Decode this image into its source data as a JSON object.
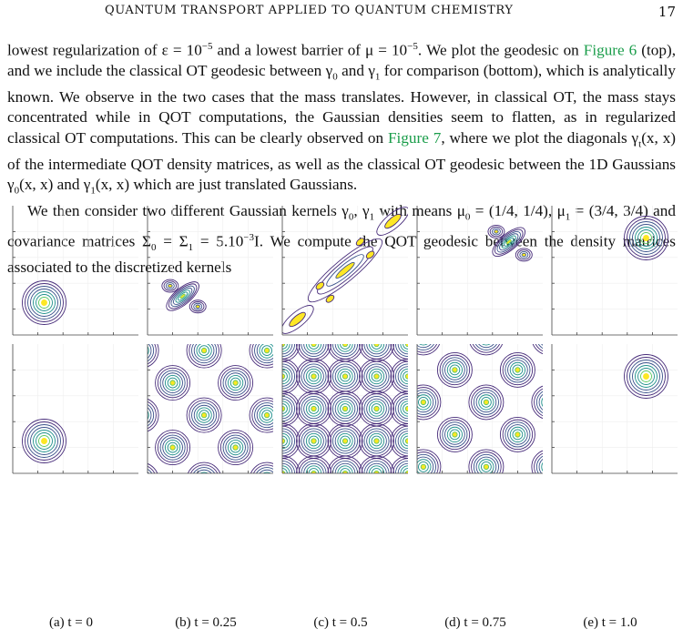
{
  "header": {
    "running_title": "QUANTUM TRANSPORT APPLIED TO QUANTUM CHEMISTRY",
    "page_number": "17"
  },
  "paragraphs": [
    {
      "segments": [
        {
          "text": "lowest regularization of ε = 10",
          "link": false
        },
        {
          "sup": "−5",
          "link": false
        },
        {
          "text": " and a lowest barrier of μ = 10",
          "link": false
        },
        {
          "sup": "−5",
          "link": false
        },
        {
          "text": ". We plot the geodesic on ",
          "link": false
        },
        {
          "text": "Figure 6",
          "link": true
        },
        {
          "text": " (top), and we include the classical OT geodesic between γ",
          "link": false
        },
        {
          "sub": "0",
          "link": false
        },
        {
          "text": " and γ",
          "link": false
        },
        {
          "sub": "1",
          "link": false
        },
        {
          "text": " for comparison (bottom), which is analytically known. We observe in the two cases that the mass translates. However, in classical OT, the mass stays concentrated while in QOT computations, the Gaussian densities seem to flatten, as in regularized classical OT computations. This can be clearly observed on ",
          "link": false
        },
        {
          "text": "Figure 7",
          "link": true
        },
        {
          "text": ", where we plot the diagonals γ",
          "link": false
        },
        {
          "sub": "t",
          "link": false
        },
        {
          "text": "(x, x) of the intermediate QOT density matrices, as well as the classical OT geodesic between the 1D Gaussians γ",
          "link": false
        },
        {
          "sub": "0",
          "link": false
        },
        {
          "text": "(x, x) and γ",
          "link": false
        },
        {
          "sub": "1",
          "link": false
        },
        {
          "text": "(x, x) which are just translated Gaussians.",
          "link": false
        }
      ]
    },
    {
      "segments": [
        {
          "text": "We then consider two different Gaussian kernels γ",
          "link": false
        },
        {
          "sub": "0",
          "link": false
        },
        {
          "text": ", γ",
          "link": false
        },
        {
          "sub": "1",
          "link": false
        },
        {
          "text": " with means μ",
          "link": false
        },
        {
          "sub": "0",
          "link": false
        },
        {
          "text": " = (1/4, 1/4), μ",
          "link": false
        },
        {
          "sub": "1",
          "link": false
        },
        {
          "text": " = (3/4, 3/4) and covariance matrices Σ",
          "link": false
        },
        {
          "sub": "0",
          "link": false
        },
        {
          "text": " = Σ",
          "link": false
        },
        {
          "sub": "1",
          "link": false
        },
        {
          "text": " = 5.10",
          "link": false
        },
        {
          "sup": "−3",
          "link": false
        },
        {
          "text": "I. We compute the QOT geodesic between the density matrices associated to the discretized kernels",
          "link": false
        }
      ]
    }
  ],
  "figure": {
    "rows": [
      "qot",
      "classical-ot"
    ],
    "panels": [
      {
        "caption": "(a) t = 0",
        "t": 0
      },
      {
        "caption": "(b) t = 0.25",
        "t": 0.25
      },
      {
        "caption": "(c) t = 0.5",
        "t": 0.5
      },
      {
        "caption": "(d) t = 0.75",
        "t": 0.75
      },
      {
        "caption": "(e) t = 1.0",
        "t": 1.0
      }
    ],
    "colors": {
      "contour_outer": "#472c7a",
      "contour_mid": "#3b528b",
      "contour_inner": "#21918c",
      "contour_core": "#5ec962",
      "contour_peak": "#fde725",
      "axis": "#444444",
      "grid": "#eeeeee"
    }
  }
}
